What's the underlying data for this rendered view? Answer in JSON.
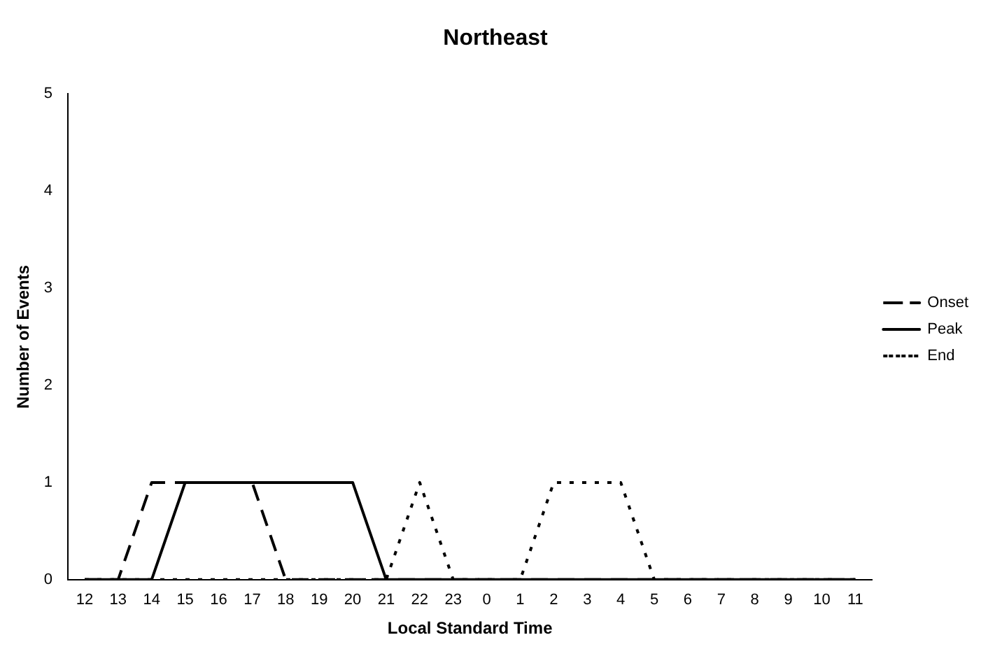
{
  "chart_data": {
    "type": "line",
    "title": "Northeast",
    "xlabel": "Local Standard Time",
    "ylabel": "Number of Events",
    "categories": [
      "12",
      "13",
      "14",
      "15",
      "16",
      "17",
      "18",
      "19",
      "20",
      "21",
      "22",
      "23",
      "0",
      "1",
      "2",
      "3",
      "4",
      "5",
      "6",
      "7",
      "8",
      "9",
      "10",
      "11"
    ],
    "series": [
      {
        "name": "Onset",
        "color": "#000000",
        "line_style": "dashed",
        "values": [
          0,
          0,
          1,
          1,
          1,
          1,
          0,
          0,
          0,
          0,
          0,
          0,
          0,
          0,
          0,
          0,
          0,
          0,
          0,
          0,
          0,
          0,
          0,
          0
        ]
      },
      {
        "name": "Peak",
        "color": "#000000",
        "line_style": "solid",
        "values": [
          0,
          0,
          0,
          1,
          1,
          1,
          1,
          1,
          1,
          0,
          0,
          0,
          0,
          0,
          0,
          0,
          0,
          0,
          0,
          0,
          0,
          0,
          0,
          0
        ]
      },
      {
        "name": "End",
        "color": "#000000",
        "line_style": "dotted",
        "values": [
          0,
          0,
          0,
          0,
          0,
          0,
          0,
          0,
          0,
          0,
          1,
          0,
          0,
          0,
          1,
          1,
          1,
          0,
          0,
          0,
          0,
          0,
          0,
          0
        ]
      }
    ],
    "ylim": [
      0,
      5
    ],
    "yticks": [
      0,
      1,
      2,
      3,
      4,
      5
    ],
    "grid": false,
    "legend": "right",
    "marker": "none"
  }
}
